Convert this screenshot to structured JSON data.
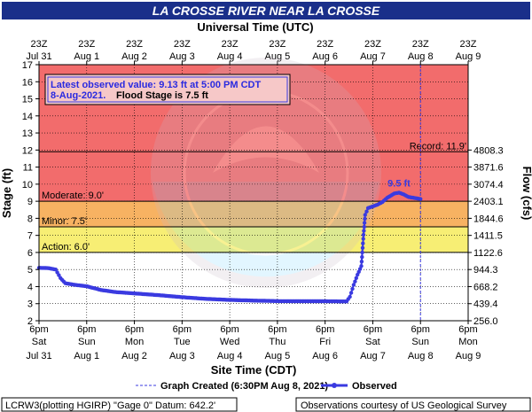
{
  "colors": {
    "title_bar": "#1a2f8a",
    "record_band": "#f26c6c",
    "moderate_band": "#f7b262",
    "minor_band": "#f7ee74",
    "normal_band": "#ffffff",
    "observed": "#3a3ae0",
    "callout_bg": "#f6c8c8",
    "callout_text": "#2a2ae0"
  },
  "chart_data": {
    "type": "line",
    "title": "LA CROSSE RIVER NEAR LA CROSSE",
    "top_axis_label": "Universal Time (UTC)",
    "xlabel": "Site Time (CDT)",
    "ylabel": "Stage (ft)",
    "y2label": "Flow (cfs)",
    "ylim": [
      2,
      17
    ],
    "xlim": [
      0,
      9
    ],
    "grid": true,
    "y_ticks": [
      2,
      3,
      4,
      5,
      6,
      7,
      8,
      9,
      10,
      11,
      12,
      13,
      14,
      15,
      16,
      17
    ],
    "flow_ticks": [
      {
        "stage": 2.0,
        "label": "256.0"
      },
      {
        "stage": 3.0,
        "label": "439.4"
      },
      {
        "stage": 4.0,
        "label": "668.2"
      },
      {
        "stage": 5.0,
        "label": "944.3"
      },
      {
        "stage": 6.0,
        "label": "1122.6"
      },
      {
        "stage": 7.0,
        "label": "1411.5"
      },
      {
        "stage": 8.0,
        "label": "1844.6"
      },
      {
        "stage": 9.0,
        "label": "2403.1"
      },
      {
        "stage": 10.0,
        "label": "3074.4"
      },
      {
        "stage": 11.0,
        "label": "3871.6"
      },
      {
        "stage": 12.0,
        "label": "4808.3"
      }
    ],
    "bottom_ticks": [
      {
        "top": "6pm",
        "mid": "Sat",
        "date": "Jul 31"
      },
      {
        "top": "6pm",
        "mid": "Sun",
        "date": "Aug 1"
      },
      {
        "top": "6pm",
        "mid": "Mon",
        "date": "Aug 2"
      },
      {
        "top": "6pm",
        "mid": "Tue",
        "date": "Aug 3"
      },
      {
        "top": "6pm",
        "mid": "Wed",
        "date": "Aug 4"
      },
      {
        "top": "6pm",
        "mid": "Thu",
        "date": "Aug 5"
      },
      {
        "top": "6pm",
        "mid": "Fri",
        "date": "Aug 6"
      },
      {
        "top": "6pm",
        "mid": "Sat",
        "date": "Aug 7"
      },
      {
        "top": "6pm",
        "mid": "Sun",
        "date": "Aug 8"
      },
      {
        "top": "6pm",
        "mid": "Mon",
        "date": "Aug 9"
      }
    ],
    "top_ticks": [
      {
        "hour": "23Z",
        "date": "Jul 31"
      },
      {
        "hour": "23Z",
        "date": "Aug 1"
      },
      {
        "hour": "23Z",
        "date": "Aug 2"
      },
      {
        "hour": "23Z",
        "date": "Aug 3"
      },
      {
        "hour": "23Z",
        "date": "Aug 4"
      },
      {
        "hour": "23Z",
        "date": "Aug 5"
      },
      {
        "hour": "23Z",
        "date": "Aug 6"
      },
      {
        "hour": "23Z",
        "date": "Aug 7"
      },
      {
        "hour": "23Z",
        "date": "Aug 8"
      },
      {
        "hour": "23Z",
        "date": "Aug 9"
      }
    ],
    "thresholds": [
      {
        "name": "Action",
        "label": "Action: 6.0'",
        "stage": 6.0
      },
      {
        "name": "Minor",
        "label": "Minor: 7.5'",
        "stage": 7.5
      },
      {
        "name": "Moderate",
        "label": "Moderate: 9.0'",
        "stage": 9.0
      },
      {
        "name": "Record",
        "label": "Record: 11.9'",
        "stage": 11.9
      }
    ],
    "graph_created_day": 8.0,
    "peak": {
      "label": "9.5 ft",
      "x": 7.55,
      "y": 9.5
    },
    "series": [
      {
        "name": "Observed",
        "marker_spacing": 0.03,
        "points": [
          [
            0.0,
            5.1
          ],
          [
            0.2,
            5.08
          ],
          [
            0.35,
            5.0
          ],
          [
            0.45,
            4.5
          ],
          [
            0.55,
            4.2
          ],
          [
            0.75,
            4.1
          ],
          [
            1.0,
            4.02
          ],
          [
            1.3,
            3.8
          ],
          [
            1.6,
            3.68
          ],
          [
            2.0,
            3.6
          ],
          [
            2.5,
            3.5
          ],
          [
            3.0,
            3.38
          ],
          [
            3.5,
            3.28
          ],
          [
            4.0,
            3.22
          ],
          [
            4.5,
            3.18
          ],
          [
            5.0,
            3.15
          ],
          [
            5.5,
            3.14
          ],
          [
            6.0,
            3.14
          ],
          [
            6.45,
            3.13
          ],
          [
            6.52,
            3.4
          ],
          [
            6.6,
            4.1
          ],
          [
            6.68,
            4.7
          ],
          [
            6.76,
            5.2
          ],
          [
            6.8,
            6.8
          ],
          [
            6.84,
            8.2
          ],
          [
            6.9,
            8.6
          ],
          [
            7.0,
            8.7
          ],
          [
            7.1,
            8.8
          ],
          [
            7.2,
            8.95
          ],
          [
            7.3,
            9.2
          ],
          [
            7.45,
            9.45
          ],
          [
            7.55,
            9.5
          ],
          [
            7.65,
            9.4
          ],
          [
            7.75,
            9.25
          ],
          [
            7.9,
            9.18
          ],
          [
            8.0,
            9.13
          ]
        ]
      }
    ],
    "legend": {
      "graph_created": "Graph Created (6:30PM Aug 8, 2021)",
      "observed": "Observed"
    }
  },
  "callout": {
    "line1": "Latest observed value: 9.13 ft at 5:00 PM CDT",
    "line2_date": "8-Aug-2021.",
    "line2_flood": "Flood Stage is 7.5 ft"
  },
  "footer": {
    "left": "LCRW3(plotting HGIRP) \"Gage 0\" Datum: 642.2'",
    "right": "Observations courtesy of US Geological Survey"
  }
}
